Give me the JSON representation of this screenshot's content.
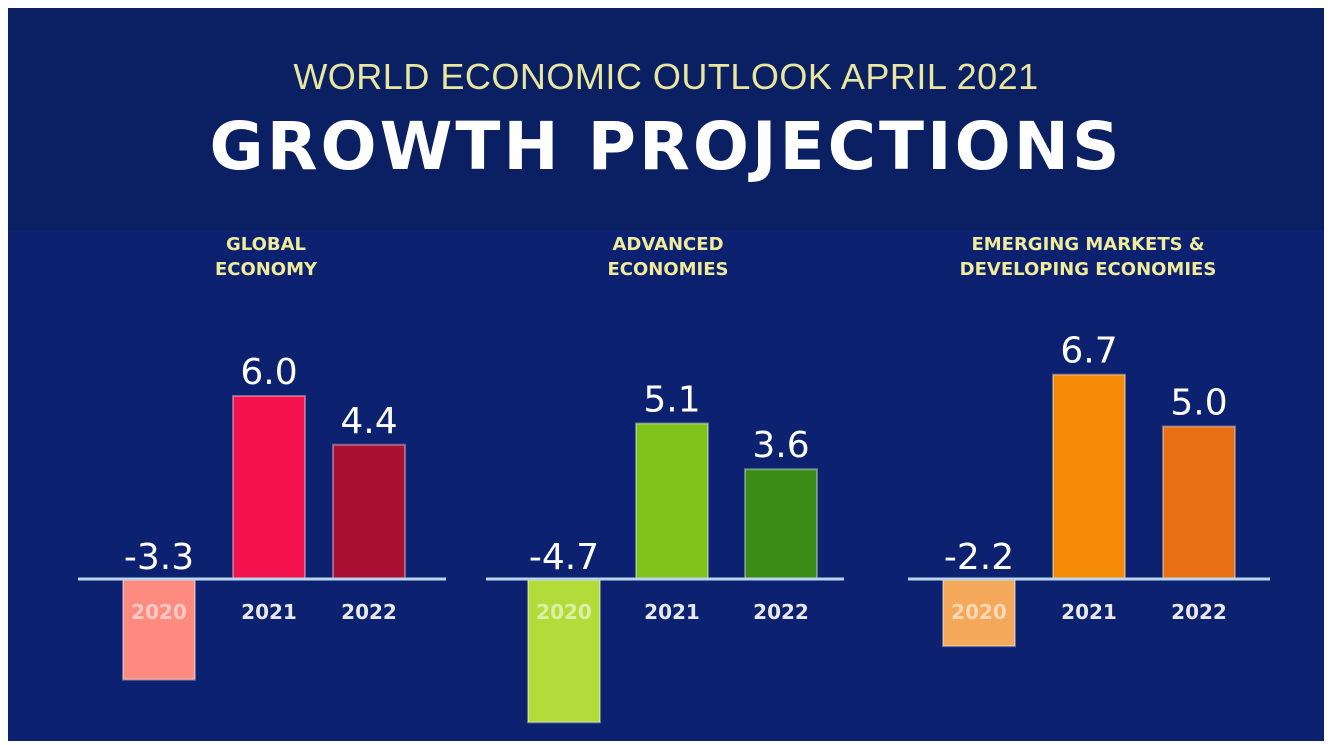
{
  "header": {
    "subtitle": "WORLD ECONOMIC OUTLOOK APRIL 2021",
    "title": "GROWTH PROJECTIONS"
  },
  "chart_data": [
    {
      "type": "bar",
      "title": "GLOBAL\nECONOMY",
      "categories": [
        "2020",
        "2021",
        "2022"
      ],
      "values": [
        -3.3,
        6.0,
        4.4
      ],
      "colors": [
        "#ff8a80",
        "#f4134e",
        "#a90f33"
      ],
      "label_color": "#ffffff"
    },
    {
      "type": "bar",
      "title": "ADVANCED\nECONOMIES",
      "categories": [
        "2020",
        "2021",
        "2022"
      ],
      "values": [
        -4.7,
        5.1,
        3.6
      ],
      "colors": [
        "#b3dc3b",
        "#7fc31a",
        "#3a8c14"
      ],
      "label_color": "#ffffff"
    },
    {
      "type": "bar",
      "title": "EMERGING MARKETS &\nDEVELOPING ECONOMIES",
      "categories": [
        "2020",
        "2021",
        "2022"
      ],
      "values": [
        -2.2,
        6.7,
        5.0
      ],
      "colors": [
        "#f4a85a",
        "#f58a06",
        "#ea6f12"
      ],
      "label_color": "#ffffff"
    }
  ]
}
